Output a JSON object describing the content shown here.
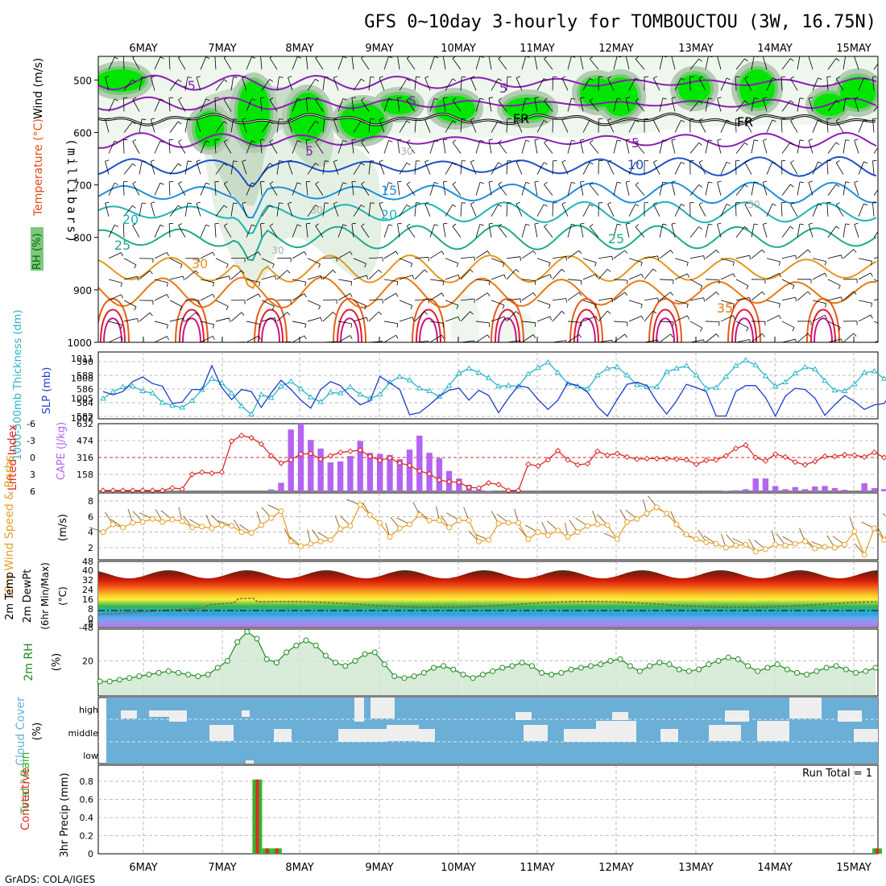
{
  "title": "GFS 0~10day 3-hourly for TOMBOUCTOU (3W, 16.75N)",
  "credit": "GrADS: COLA/IGES",
  "days": [
    "6MAY",
    "7MAY",
    "8MAY",
    "9MAY",
    "10MAY",
    "11MAY",
    "12MAY",
    "13MAY",
    "14MAY",
    "15MAY"
  ],
  "colors": {
    "rh_green": "#00e600",
    "thickness": "#28b4c8",
    "slp": "#1e3cc8",
    "lifted_index": "#dc2828",
    "cape": "#b464f0",
    "wind10m": "#e6a028",
    "rh2m": "#1e8c1e",
    "cloud": "#6baed6",
    "precip_total": "#2eb82e",
    "precip_conv": "#e62828"
  },
  "panels": {
    "upper": {
      "ylabel_rh": "RH (%)",
      "ylabel_temp": "Temperature (°C)",
      "ylabel_wind": "Wind (m/s)",
      "ylabel_p": "(millibars)",
      "p_ticks": [
        "500",
        "600",
        "700",
        "800",
        "900",
        "1000"
      ],
      "contour_labels": [
        "-5",
        "5",
        "5",
        "5",
        "5",
        "10",
        "15",
        "20",
        "20",
        "25",
        "25",
        "30",
        "30",
        "30",
        "30",
        "30",
        "35",
        "FR",
        "FR"
      ]
    },
    "slp": {
      "ylabel_thick": "1000-500mb Thickness (dm)",
      "ylabel_slp": "SLP (mb)",
      "left_ticks": [
        "590",
        "588",
        "586",
        "584",
        "582"
      ],
      "right_ticks": [
        "1011",
        "1008",
        "1005",
        "1002"
      ]
    },
    "cape": {
      "ylabel_li": "Lifted Index",
      "ylabel_cape": "CAPE (J/kg)",
      "li_ticks": [
        "-6",
        "-3",
        "0",
        "3",
        "6"
      ],
      "cape_ticks": [
        "632",
        "474",
        "316",
        "158"
      ]
    },
    "wind10": {
      "ylabel": "10m Wind Speed & Barbs",
      "unit": "(m/s)",
      "ticks": [
        "8",
        "6",
        "4",
        "2"
      ]
    },
    "temp2m": {
      "ylabel1": "2m Temp",
      "ylabel2": "2m DewPt",
      "ylabel3": "(6hr Min/Max)",
      "unit": "(°C)",
      "ticks": [
        "48",
        "40",
        "32",
        "24",
        "16",
        "8",
        "0",
        "-8",
        "-48"
      ]
    },
    "rh2m": {
      "ylabel": "2m RH",
      "unit": "(%)",
      "ticks": [
        "20"
      ]
    },
    "cloud": {
      "ylabel": "Cloud Cover",
      "unit": "(%)",
      "levels": [
        "high",
        "middle",
        "low"
      ]
    },
    "precip": {
      "ylabel_a": "Total / Rain",
      "ylabel_b": "Convective",
      "ylabel_c": "3hr Precip (mm)",
      "ticks": [
        "0.8",
        "0.6",
        "0.4",
        "0.2",
        "0"
      ],
      "run_total": "Run Total = 1"
    }
  },
  "chart_data": [
    {
      "type": "line",
      "name": "SLP and 1000-500mb Thickness",
      "x_unit": "3-hourly steps, 6MAY-15MAY",
      "series": [
        {
          "name": "SLP (mb)",
          "values": [
            1006.0,
            1005.5,
            1006.0,
            1007.5,
            1008.2,
            1007.2,
            1006.8,
            1004.2,
            1004.4,
            1006.3,
            1006.3,
            1009.9,
            1006.6,
            1004.8,
            1006.3,
            1006.0,
            1003.6,
            1005.8,
            1007.7,
            1006.3,
            1004.7,
            1003.5,
            1006.3,
            1007.5,
            1006.9,
            1005.3,
            1004.0,
            1004.6,
            1008.3,
            1007.3,
            1006.3,
            1002.5,
            1002.8,
            1004.0,
            1005.3,
            1006.2,
            1006.5,
            1004.7,
            1006.2,
            1005.4,
            1002.8,
            1005.0,
            1006.9,
            1006.6,
            1004.8,
            1003.3,
            1004.7,
            1007.3,
            1006.9,
            1005.9,
            1003.7,
            1002.3,
            1004.8,
            1007.1,
            1007.4,
            1006.9,
            1004.5,
            1002.6,
            1004.6,
            1007.1,
            1006.6,
            1006.0,
            1002.3,
            1002.3,
            1006.0,
            1006.9,
            1006.9,
            1005.1,
            1002.3,
            1005.3,
            1006.5,
            1006.3,
            1005.0,
            1002.4,
            1004.0,
            1005.4,
            1004.5,
            1003.3,
            1004.0,
            1004.2,
            1006.3
          ]
        },
        {
          "name": "1000-500mb Thickness (dm)",
          "values": [
            584.6,
            585.6,
            586.3,
            586.4,
            585.7,
            585.4,
            584.0,
            583.6,
            583.3,
            584.3,
            585.9,
            587.5,
            586.9,
            585.4,
            583.5,
            582.3,
            585.2,
            584.7,
            586.4,
            587.1,
            586.0,
            584.8,
            584.1,
            585.5,
            585.4,
            586.3,
            585.2,
            584.6,
            585.2,
            587.0,
            587.8,
            587.3,
            586.1,
            585.7,
            584.9,
            586.5,
            588.3,
            589.0,
            588.4,
            587.6,
            586.4,
            586.5,
            586.4,
            588.2,
            589.1,
            589.9,
            588.4,
            586.8,
            586.4,
            586.0,
            588.0,
            589.0,
            589.2,
            588.0,
            586.6,
            586.3,
            586.3,
            588.5,
            589.0,
            589.4,
            588.0,
            586.1,
            586.2,
            587.8,
            589.4,
            590.2,
            589.5,
            587.9,
            586.4,
            587.0,
            588.3,
            589.2,
            588.9,
            587.2,
            585.8,
            585.7,
            586.7,
            588.4,
            588.6,
            587.5,
            586.9
          ]
        }
      ]
    },
    {
      "type": "bar",
      "name": "CAPE (J/kg)",
      "values": [
        0,
        0,
        0,
        0,
        0,
        0,
        0,
        0,
        0,
        0,
        0,
        0,
        0,
        0,
        0,
        0,
        0,
        18,
        80,
        578,
        632,
        480,
        400,
        270,
        280,
        330,
        470,
        360,
        350,
        340,
        300,
        390,
        520,
        360,
        310,
        190,
        120,
        60,
        20,
        5,
        0,
        0,
        0,
        0,
        0,
        0,
        0,
        0,
        0,
        0,
        0,
        0,
        0,
        0,
        0,
        0,
        0,
        0,
        0,
        0,
        0,
        0,
        0,
        5,
        10,
        20,
        120,
        120,
        50,
        20,
        40,
        20,
        45,
        50,
        30,
        15,
        0,
        75,
        30,
        20,
        30,
        35,
        20,
        35,
        40,
        0,
        0,
        0,
        0,
        50,
        0,
        20,
        30,
        20,
        20,
        0,
        0,
        0,
        0,
        0
      ]
    },
    {
      "type": "line",
      "name": "Lifted Index",
      "values": [
        6,
        6,
        6,
        6,
        6,
        6,
        6,
        5.4,
        5.6,
        3.0,
        2.6,
        2.8,
        2.6,
        -2.9,
        -3.9,
        -3.5,
        -2.4,
        -0.3,
        1.0,
        0.4,
        -0.6,
        -0.7,
        0.3,
        -0.3,
        -0.9,
        -1.1,
        -1.3,
        -0.2,
        0.5,
        0.1,
        1.0,
        1.4,
        2.4,
        2.9,
        4.0,
        4.3,
        4.4,
        5.3,
        5.4,
        4.5,
        4.8,
        6,
        6,
        1.2,
        1.5,
        0.4,
        -1.2,
        0.4,
        1.3,
        1.1,
        -1.1,
        -0.4,
        -0.7,
        -0.1,
        0.3,
        0.2,
        0.2,
        0.2,
        0.3,
        0.4,
        1.2,
        0.5,
        0.4,
        -0.3,
        -1.6,
        -2.2,
        0.0,
        0.6,
        -0.6,
        -0.1,
        0.8,
        1.3,
        0.7,
        -0.2,
        -0.2,
        -0.5,
        -0.4,
        -0.1,
        -0.9,
        0.0,
        1.0,
        -0.8,
        0.2,
        0.6,
        0.0,
        -0.9,
        -0.8,
        -0.9,
        -0.5,
        -0.6,
        -0.7,
        -0.4,
        -0.2,
        -0.6,
        0.4,
        -0.4,
        -0.7,
        -0.3,
        2.6,
        2.1,
        1.3,
        0.6,
        2.7,
        3.2,
        3.2,
        5.8,
        2.6,
        3.0,
        3.5,
        4.0,
        6.0
      ]
    },
    {
      "type": "line",
      "name": "10m Wind Speed (m/s)",
      "values": [
        4.0,
        5.0,
        4.6,
        5.2,
        5.3,
        5.7,
        5.3,
        5.6,
        5.4,
        4.6,
        4.7,
        4.5,
        4.9,
        4.8,
        4.0,
        3.9,
        4.9,
        5.8,
        6.7,
        2.8,
        2.2,
        2.5,
        2.8,
        3.0,
        4.4,
        4.8,
        7.5,
        6.2,
        5.2,
        3.4,
        4.5,
        5.0,
        6.2,
        5.5,
        5.5,
        4.6,
        5.5,
        5.5,
        2.8,
        3.0,
        5.1,
        5.2,
        5.2,
        3.1,
        4.0,
        3.6,
        4.2,
        3.4,
        4.0,
        4.8,
        5.0,
        4.9,
        3.1,
        5.3,
        5.7,
        6.4,
        7.2,
        6.4,
        5.0,
        3.7,
        3.1,
        2.7,
        2.5,
        2.0,
        2.3,
        2.4,
        1.5,
        1.8,
        2.4,
        2.3,
        2.5,
        2.8,
        1.9,
        2.1,
        2.0,
        2.4,
        4.1,
        1.1,
        4.5,
        3.0,
        5.2,
        4.2,
        4.6,
        4.5,
        4.7,
        4.8,
        3.6,
        5.3,
        1.9,
        3.8,
        5.7,
        5.4,
        4.6,
        6.5,
        5.6,
        4.8,
        5.4,
        4.1,
        5.6,
        5.2,
        4.6,
        5.4,
        5.3,
        5.7,
        4.8,
        4.6,
        4.3,
        5.3,
        4.7,
        4.2,
        5.4,
        3.9,
        2.1,
        2.4,
        2.8,
        3.6,
        4.4,
        4.8,
        5.4,
        5.0,
        5.8,
        6.2,
        6.9,
        7.2,
        6.2
      ]
    },
    {
      "type": "line",
      "name": "2m RH (%)",
      "values": [
        8,
        8,
        9,
        10,
        11,
        12,
        13,
        14,
        13,
        12,
        11,
        12,
        16,
        20,
        31,
        37,
        33,
        21,
        19,
        25,
        29,
        32,
        29,
        23,
        19,
        17,
        20,
        24,
        25,
        18,
        11,
        10,
        11,
        13,
        16,
        17,
        15,
        12,
        10,
        12,
        14,
        16,
        17,
        19,
        17,
        13,
        12,
        13,
        15,
        16,
        17,
        18,
        20,
        21,
        17,
        14,
        17,
        19,
        18,
        15,
        14,
        15,
        18,
        20,
        22,
        21,
        17,
        14,
        16,
        18,
        15,
        13,
        12,
        14,
        16,
        17,
        15,
        13,
        14,
        16
      ]
    },
    {
      "type": "bar",
      "name": "3hr Precip (mm)",
      "series": [
        {
          "name": "Total / Rain",
          "values": [
            0,
            0,
            0,
            0,
            0,
            0,
            0,
            0,
            0,
            0,
            0,
            0,
            0,
            0,
            0,
            0,
            0.82,
            0.06,
            0.06,
            0,
            0,
            0,
            0,
            0,
            0,
            0,
            0,
            0,
            0,
            0,
            0,
            0,
            0,
            0,
            0,
            0,
            0,
            0,
            0,
            0,
            0,
            0,
            0,
            0,
            0,
            0,
            0,
            0,
            0,
            0,
            0,
            0,
            0,
            0,
            0,
            0,
            0,
            0,
            0,
            0,
            0,
            0,
            0,
            0,
            0,
            0,
            0,
            0,
            0,
            0,
            0,
            0,
            0,
            0,
            0,
            0,
            0,
            0,
            0,
            0.06
          ]
        },
        {
          "name": "Convective",
          "values": [
            0,
            0,
            0,
            0,
            0,
            0,
            0,
            0,
            0,
            0,
            0,
            0,
            0,
            0,
            0,
            0,
            0.82,
            0.06,
            0.06,
            0,
            0,
            0,
            0,
            0,
            0,
            0,
            0,
            0,
            0,
            0,
            0,
            0,
            0,
            0,
            0,
            0,
            0,
            0,
            0,
            0,
            0,
            0,
            0,
            0,
            0,
            0,
            0,
            0,
            0,
            0,
            0,
            0,
            0,
            0,
            0,
            0,
            0,
            0,
            0,
            0,
            0,
            0,
            0,
            0,
            0,
            0,
            0,
            0,
            0,
            0,
            0,
            0,
            0,
            0,
            0,
            0,
            0,
            0,
            0,
            0.06
          ]
        }
      ],
      "ylim": [
        0,
        0.9
      ]
    }
  ]
}
